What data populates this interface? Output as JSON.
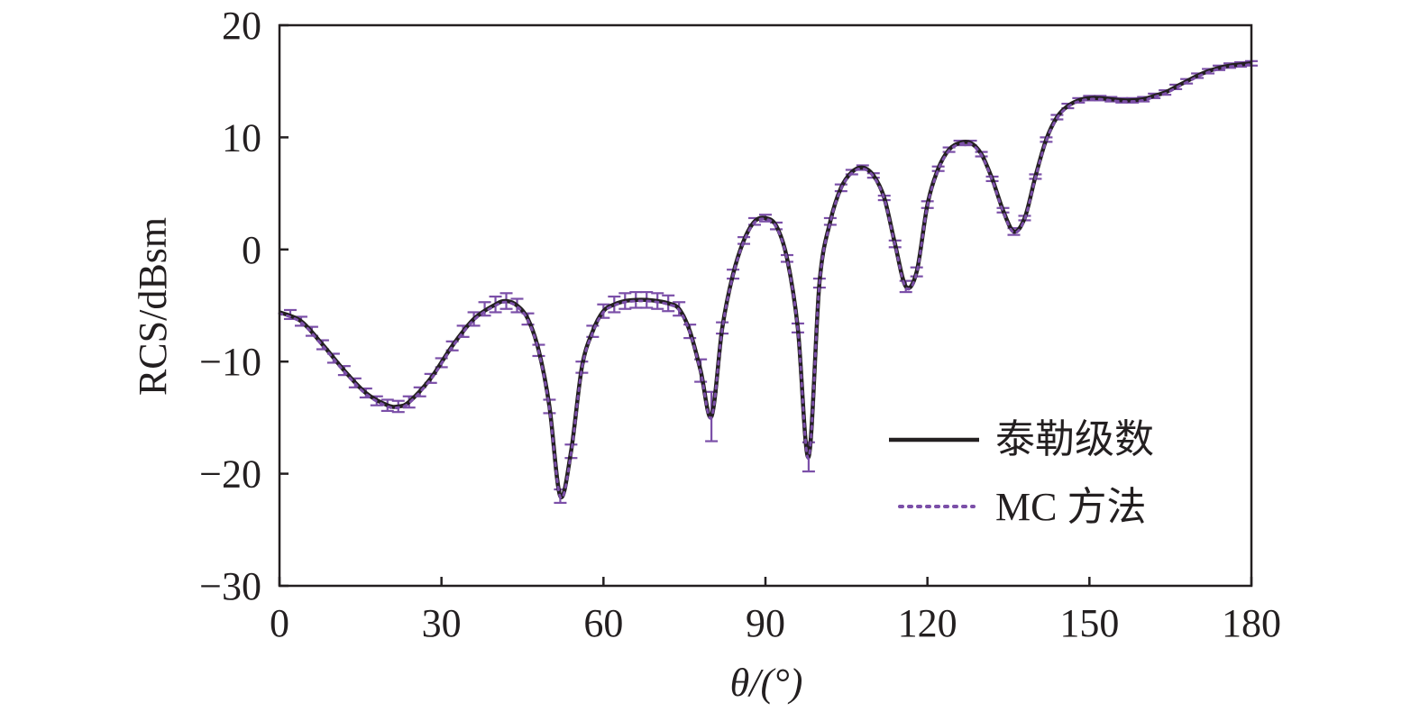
{
  "chart_data": {
    "type": "line",
    "xlabel": "θ/(°)",
    "ylabel": "RCS/dBsm",
    "xlim": [
      0,
      180
    ],
    "ylim": [
      -30,
      20
    ],
    "x_ticks": [
      0,
      30,
      60,
      90,
      120,
      150,
      180
    ],
    "y_ticks": [
      -30,
      -20,
      -10,
      0,
      10,
      20
    ],
    "x_tick_labels": [
      "0",
      "30",
      "60",
      "90",
      "120",
      "150",
      "180"
    ],
    "y_tick_labels": [
      "−30",
      "−20",
      "−10",
      "0",
      "10",
      "20"
    ],
    "grid": false,
    "legend_position": "lower-right",
    "colors": {
      "taylor": "#231f20",
      "mc": "#7b4fa8",
      "axis": "#231f20"
    },
    "series": [
      {
        "name": "泰勒级数",
        "style": "solid",
        "x": [
          0,
          4,
          8,
          12,
          16,
          20,
          22,
          24,
          28,
          32,
          36,
          40,
          42,
          44,
          46,
          48,
          50,
          52,
          54,
          56,
          58,
          60,
          62,
          64,
          66,
          68,
          70,
          72,
          74,
          76,
          78,
          80,
          82,
          84,
          86,
          88,
          90,
          92,
          94,
          96,
          98,
          100,
          102,
          104,
          106,
          108,
          110,
          112,
          114,
          116,
          118,
          120,
          122,
          124,
          126,
          128,
          130,
          132,
          134,
          136,
          138,
          140,
          142,
          144,
          146,
          148,
          150,
          152,
          154,
          156,
          158,
          160,
          162,
          164,
          166,
          168,
          170,
          172,
          174,
          176,
          178,
          180
        ],
        "y": [
          -5.6,
          -6.4,
          -8.5,
          -10.8,
          -12.8,
          -13.9,
          -14.0,
          -13.6,
          -11.5,
          -8.6,
          -6.2,
          -4.9,
          -4.6,
          -5.0,
          -6.2,
          -9.0,
          -14.0,
          -22.0,
          -18.0,
          -10.5,
          -7.3,
          -5.5,
          -4.9,
          -4.6,
          -4.5,
          -4.5,
          -4.6,
          -4.8,
          -5.3,
          -7.3,
          -10.8,
          -14.9,
          -7.0,
          -2.2,
          0.8,
          2.5,
          2.8,
          2.1,
          -0.8,
          -7.0,
          -18.5,
          -3.0,
          2.5,
          5.5,
          6.9,
          7.3,
          6.6,
          4.6,
          0.5,
          -3.3,
          -2.0,
          4.0,
          7.2,
          8.9,
          9.5,
          9.5,
          8.5,
          6.3,
          3.5,
          1.6,
          2.8,
          6.5,
          9.8,
          11.8,
          12.8,
          13.3,
          13.5,
          13.5,
          13.4,
          13.3,
          13.3,
          13.4,
          13.7,
          14.0,
          14.5,
          15.0,
          15.5,
          15.9,
          16.2,
          16.4,
          16.5,
          16.6
        ]
      },
      {
        "name": "MC 方法",
        "style": "dotted",
        "x": [
          0,
          4,
          8,
          12,
          16,
          20,
          22,
          24,
          28,
          32,
          36,
          40,
          42,
          44,
          46,
          48,
          50,
          52,
          54,
          56,
          58,
          60,
          62,
          64,
          66,
          68,
          70,
          72,
          74,
          76,
          78,
          80,
          82,
          84,
          86,
          88,
          90,
          92,
          94,
          96,
          98,
          100,
          102,
          104,
          106,
          108,
          110,
          112,
          114,
          116,
          118,
          120,
          122,
          124,
          126,
          128,
          130,
          132,
          134,
          136,
          138,
          140,
          142,
          144,
          146,
          148,
          150,
          152,
          154,
          156,
          158,
          160,
          162,
          164,
          166,
          168,
          170,
          172,
          174,
          176,
          178,
          180
        ],
        "y": [
          -5.7,
          -6.5,
          -8.6,
          -10.9,
          -12.9,
          -14.0,
          -14.1,
          -13.7,
          -11.6,
          -8.7,
          -6.3,
          -5.0,
          -4.7,
          -5.1,
          -6.3,
          -9.1,
          -14.2,
          -22.1,
          -18.2,
          -10.6,
          -7.4,
          -5.6,
          -5.0,
          -4.7,
          -4.6,
          -4.6,
          -4.7,
          -4.9,
          -5.4,
          -7.4,
          -10.9,
          -15.0,
          -7.1,
          -2.3,
          0.7,
          2.4,
          2.7,
          2.0,
          -0.9,
          -7.1,
          -18.6,
          -3.1,
          2.4,
          5.4,
          6.8,
          7.2,
          6.5,
          4.5,
          0.4,
          -3.4,
          -2.1,
          3.9,
          7.1,
          8.8,
          9.4,
          9.4,
          8.4,
          6.2,
          3.4,
          1.5,
          2.7,
          6.4,
          9.7,
          11.7,
          12.7,
          13.2,
          13.4,
          13.4,
          13.3,
          13.2,
          13.2,
          13.3,
          13.6,
          13.9,
          14.4,
          14.9,
          15.4,
          15.8,
          16.1,
          16.3,
          16.4,
          16.5
        ],
        "error_bars": {
          "x": [
            2,
            4,
            6,
            8,
            10,
            12,
            14,
            16,
            18,
            20,
            22,
            24,
            26,
            28,
            30,
            32,
            34,
            36,
            38,
            40,
            42,
            44,
            46,
            48,
            50,
            52,
            54,
            56,
            58,
            60,
            62,
            64,
            66,
            68,
            70,
            72,
            74,
            76,
            78,
            80,
            82,
            84,
            86,
            88,
            90,
            92,
            94,
            96,
            98,
            100,
            102,
            104,
            106,
            108,
            110,
            112,
            114,
            116,
            118,
            120,
            122,
            124,
            126,
            128,
            130,
            132,
            134,
            136,
            138,
            140,
            142,
            144,
            146,
            148,
            150,
            152,
            154,
            156,
            158,
            160,
            162,
            164,
            166,
            168,
            170,
            172,
            174,
            176,
            178,
            180
          ],
          "y": [
            -5.8,
            -6.4,
            -7.3,
            -8.5,
            -9.7,
            -10.8,
            -11.9,
            -12.8,
            -13.5,
            -13.9,
            -14.0,
            -13.6,
            -12.7,
            -11.5,
            -10.1,
            -8.6,
            -7.3,
            -6.2,
            -5.3,
            -4.9,
            -4.6,
            -5.0,
            -6.2,
            -9.0,
            -14.0,
            -22.0,
            -18.0,
            -10.5,
            -7.3,
            -5.5,
            -4.9,
            -4.6,
            -4.5,
            -4.5,
            -4.6,
            -4.8,
            -5.3,
            -7.3,
            -10.8,
            -14.9,
            -7.0,
            -2.2,
            0.8,
            2.5,
            2.8,
            2.1,
            -0.8,
            -7.0,
            -18.5,
            -3.0,
            2.5,
            5.5,
            6.9,
            7.3,
            6.6,
            4.6,
            0.5,
            -3.3,
            -2.0,
            4.0,
            7.2,
            8.9,
            9.5,
            9.5,
            8.5,
            6.3,
            3.5,
            1.6,
            2.8,
            6.5,
            9.8,
            11.8,
            12.8,
            13.3,
            13.5,
            13.5,
            13.4,
            13.3,
            13.3,
            13.4,
            13.7,
            14.0,
            14.5,
            15.0,
            15.5,
            15.9,
            16.2,
            16.4,
            16.5,
            16.6
          ],
          "err": [
            0.4,
            0.4,
            0.4,
            0.4,
            0.4,
            0.4,
            0.4,
            0.4,
            0.4,
            0.5,
            0.5,
            0.5,
            0.4,
            0.4,
            0.4,
            0.4,
            0.5,
            0.6,
            0.6,
            0.7,
            0.7,
            0.6,
            0.5,
            0.5,
            0.6,
            0.6,
            0.6,
            0.5,
            0.5,
            0.6,
            0.7,
            0.7,
            0.7,
            0.7,
            0.7,
            0.7,
            0.6,
            0.6,
            1.0,
            2.2,
            0.5,
            0.4,
            0.3,
            0.3,
            0.3,
            0.3,
            0.3,
            0.4,
            1.3,
            0.4,
            0.3,
            0.3,
            0.2,
            0.2,
            0.2,
            0.2,
            0.3,
            0.5,
            0.4,
            0.3,
            0.2,
            0.2,
            0.2,
            0.2,
            0.2,
            0.2,
            0.2,
            0.3,
            0.2,
            0.2,
            0.2,
            0.2,
            0.2,
            0.2,
            0.2,
            0.2,
            0.2,
            0.2,
            0.2,
            0.2,
            0.2,
            0.2,
            0.2,
            0.2,
            0.2,
            0.2,
            0.2,
            0.2,
            0.2,
            0.2
          ]
        }
      }
    ]
  }
}
